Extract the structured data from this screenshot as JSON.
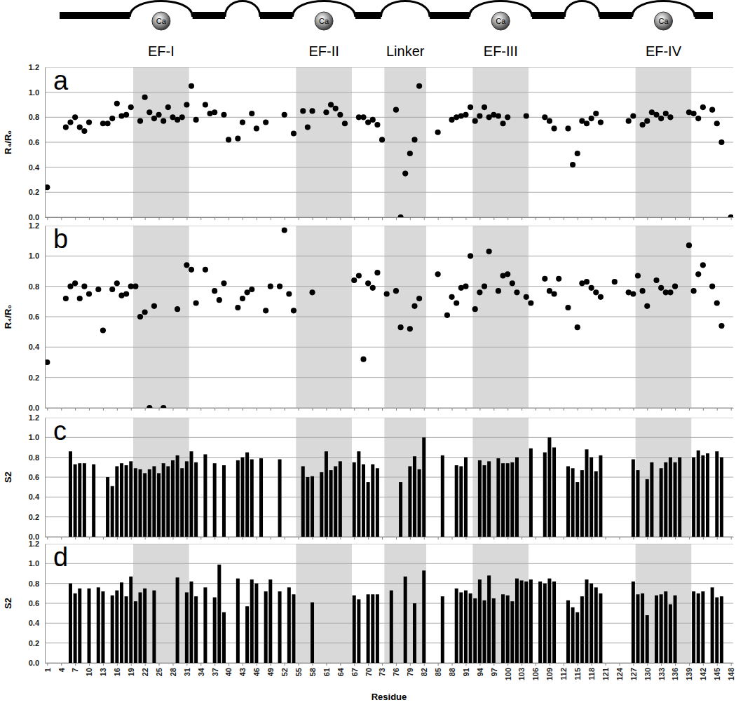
{
  "regions": [
    {
      "label": "EF-I",
      "ion": "Ca",
      "start": 19.5,
      "end": 31.5
    },
    {
      "label": "EF-II",
      "ion": "Ca",
      "start": 54.5,
      "end": 66.5
    },
    {
      "label": "Linker",
      "start": 73.5,
      "end": 82.5
    },
    {
      "label": "EF-III",
      "ion": "Ca",
      "start": 92.5,
      "end": 104.5
    },
    {
      "label": "EF-IV",
      "ion": "Ca",
      "start": 127.5,
      "end": 139.5
    }
  ],
  "chart_data": [
    {
      "type": "scatter",
      "title": "a",
      "y_label": "R₄/R₀",
      "color": "#000000",
      "marker": "circle",
      "grid": true,
      "tick_labels": "y",
      "xlim": [
        0.5,
        148.5
      ],
      "ylim": [
        0,
        1.2
      ],
      "xticks": [
        1,
        4,
        7,
        10,
        13,
        16,
        19,
        22,
        25,
        28,
        31,
        34,
        37,
        40,
        43,
        46,
        49,
        52,
        55,
        58,
        61,
        64,
        67,
        70,
        73,
        76,
        79,
        82,
        85,
        88,
        91,
        94,
        97,
        100,
        103,
        106,
        109,
        112,
        115,
        118,
        121,
        124,
        127,
        130,
        133,
        136,
        139,
        142,
        145,
        148
      ],
      "yticks": [
        {
          "value": 0,
          "label": "0.0"
        },
        0.2,
        0.4,
        0.6,
        0.8,
        {
          "value": 1,
          "label": "1.0"
        },
        1.2
      ],
      "x": [
        1,
        5,
        6,
        7,
        8,
        9,
        10,
        13,
        14,
        15,
        16,
        17,
        18,
        19,
        21,
        22,
        23,
        24,
        25,
        26,
        27,
        28,
        29,
        30,
        31,
        32,
        33,
        35,
        36,
        37,
        39,
        40,
        42,
        43,
        45,
        46,
        48,
        52,
        54,
        56,
        57,
        58,
        61,
        62,
        63,
        64,
        65,
        68,
        69,
        70,
        71,
        72,
        73,
        76,
        77,
        78,
        79,
        80,
        81,
        85,
        88,
        89,
        90,
        91,
        92,
        93,
        94,
        95,
        96,
        97,
        98,
        99,
        100,
        104,
        108,
        109,
        110,
        113,
        114,
        115,
        116,
        117,
        118,
        119,
        120,
        126,
        127,
        129,
        130,
        131,
        132,
        133,
        134,
        135,
        139,
        140,
        141,
        142,
        144,
        145,
        146,
        148
      ],
      "values": [
        0.24,
        0.72,
        0.76,
        0.8,
        0.72,
        0.69,
        0.76,
        0.75,
        0.75,
        0.79,
        0.91,
        0.81,
        0.82,
        0.88,
        0.77,
        0.96,
        0.84,
        0.79,
        0.82,
        0.77,
        0.88,
        0.8,
        0.78,
        0.8,
        0.9,
        1.05,
        0.78,
        0.9,
        0.83,
        0.84,
        0.82,
        0.62,
        0.63,
        0.76,
        0.83,
        0.71,
        0.76,
        0.82,
        0.67,
        0.85,
        0.72,
        0.85,
        0.84,
        0.9,
        0.87,
        0.82,
        0.75,
        0.8,
        0.8,
        0.76,
        0.78,
        0.74,
        0.62,
        0.86,
        0.0,
        0.35,
        0.51,
        0.62,
        1.05,
        0.68,
        0.78,
        0.8,
        0.81,
        0.82,
        0.88,
        0.77,
        0.81,
        0.88,
        0.8,
        0.82,
        0.81,
        0.75,
        0.8,
        0.81,
        0.8,
        0.77,
        0.71,
        0.71,
        0.42,
        0.51,
        0.77,
        0.75,
        0.79,
        0.83,
        0.76,
        0.77,
        0.81,
        0.74,
        0.77,
        0.84,
        0.82,
        0.79,
        0.83,
        0.8,
        0.84,
        0.83,
        0.79,
        0.88,
        0.86,
        0.75,
        0.6,
        0.0
      ]
    },
    {
      "type": "scatter",
      "title": "b",
      "y_label": "R₄/R₀",
      "color": "#000000",
      "marker": "circle",
      "grid": true,
      "tick_labels": "y",
      "xlim": [
        0.5,
        148.5
      ],
      "ylim": [
        0,
        1.2
      ],
      "xticks": [
        1,
        4,
        7,
        10,
        13,
        16,
        19,
        22,
        25,
        28,
        31,
        34,
        37,
        40,
        43,
        46,
        49,
        52,
        55,
        58,
        61,
        64,
        67,
        70,
        73,
        76,
        79,
        82,
        85,
        88,
        91,
        94,
        97,
        100,
        103,
        106,
        109,
        112,
        115,
        118,
        121,
        124,
        127,
        130,
        133,
        136,
        139,
        142,
        145,
        148
      ],
      "yticks": [
        {
          "value": 0,
          "label": "0.0"
        },
        0.2,
        0.4,
        0.6,
        0.8,
        {
          "value": 1,
          "label": "1.0"
        },
        1.2
      ],
      "x": [
        1,
        5,
        6,
        7,
        8,
        9,
        10,
        12,
        13,
        15,
        16,
        17,
        18,
        19,
        20,
        21,
        22,
        23,
        24,
        26,
        29,
        31,
        32,
        33,
        35,
        37,
        38,
        39,
        42,
        43,
        44,
        45,
        48,
        49,
        51,
        52,
        53,
        54,
        58,
        67,
        68,
        69,
        70,
        71,
        72,
        74,
        76,
        77,
        79,
        80,
        81,
        85,
        87,
        88,
        89,
        90,
        91,
        92,
        93,
        94,
        95,
        96,
        98,
        99,
        100,
        101,
        102,
        104,
        105,
        108,
        109,
        110,
        111,
        113,
        115,
        116,
        117,
        118,
        119,
        120,
        123,
        126,
        127,
        128,
        129,
        130,
        132,
        133,
        134,
        135,
        136,
        139,
        140,
        141,
        142,
        144,
        145,
        146
      ],
      "values": [
        0.3,
        0.72,
        0.8,
        0.82,
        0.72,
        0.8,
        0.75,
        0.78,
        0.51,
        0.78,
        0.82,
        0.74,
        0.75,
        0.8,
        0.8,
        0.6,
        0.63,
        0.0,
        0.67,
        0.0,
        0.65,
        0.94,
        0.91,
        0.69,
        0.91,
        0.77,
        0.71,
        0.82,
        0.66,
        0.72,
        0.76,
        0.78,
        0.64,
        0.8,
        0.8,
        1.17,
        0.75,
        0.64,
        0.76,
        0.84,
        0.87,
        0.32,
        0.82,
        0.79,
        0.89,
        0.75,
        0.77,
        0.53,
        0.52,
        0.67,
        0.72,
        0.88,
        0.61,
        0.73,
        0.69,
        0.79,
        0.8,
        1.0,
        0.65,
        0.76,
        0.8,
        1.03,
        0.77,
        0.87,
        0.88,
        0.82,
        0.76,
        0.73,
        0.69,
        0.85,
        0.77,
        0.75,
        0.85,
        0.66,
        0.53,
        0.82,
        0.83,
        0.79,
        0.76,
        0.73,
        0.83,
        0.76,
        0.75,
        0.87,
        0.77,
        0.67,
        0.84,
        0.79,
        0.76,
        0.76,
        0.8,
        1.07,
        0.77,
        0.88,
        0.94,
        0.8,
        0.69,
        0.54
      ]
    },
    {
      "type": "bar",
      "title": "c",
      "y_label": "S2",
      "color": "#000000",
      "grid": true,
      "tick_labels": "y",
      "xlim": [
        0.5,
        148.5
      ],
      "ylim": [
        0,
        1.2
      ],
      "xticks": [
        1,
        4,
        7,
        10,
        13,
        16,
        19,
        22,
        25,
        28,
        31,
        34,
        37,
        40,
        43,
        46,
        49,
        52,
        55,
        58,
        61,
        64,
        67,
        70,
        73,
        76,
        79,
        82,
        85,
        88,
        91,
        94,
        97,
        100,
        103,
        106,
        109,
        112,
        115,
        118,
        121,
        124,
        127,
        130,
        133,
        136,
        139,
        142,
        145,
        148
      ],
      "yticks": [
        {
          "value": 0,
          "label": "0.0"
        },
        0.2,
        0.4,
        0.6,
        0.8,
        {
          "value": 1,
          "label": "1.0"
        },
        1.2
      ],
      "x": [
        6,
        7,
        8,
        9,
        11,
        14,
        15,
        16,
        17,
        18,
        19,
        20,
        21,
        22,
        23,
        24,
        25,
        26,
        27,
        28,
        29,
        30,
        31,
        32,
        33,
        35,
        37,
        39,
        42,
        43,
        44,
        45,
        47,
        51,
        56,
        57,
        58,
        60,
        61,
        62,
        63,
        64,
        67,
        68,
        69,
        70,
        71,
        72,
        77,
        79,
        80,
        81,
        82,
        86,
        89,
        90,
        91,
        94,
        95,
        96,
        98,
        99,
        100,
        101,
        102,
        105,
        108,
        109,
        110,
        113,
        114,
        115,
        116,
        117,
        118,
        119,
        120,
        127,
        128,
        130,
        131,
        133,
        134,
        135,
        136,
        137,
        140,
        141,
        142,
        143,
        145,
        146
      ],
      "values": [
        0.86,
        0.73,
        0.74,
        0.74,
        0.73,
        0.6,
        0.51,
        0.71,
        0.74,
        0.72,
        0.76,
        0.69,
        0.68,
        0.64,
        0.68,
        0.71,
        0.64,
        0.74,
        0.71,
        0.77,
        0.82,
        0.69,
        0.76,
        0.86,
        0.75,
        0.83,
        0.74,
        0.72,
        0.77,
        0.8,
        0.85,
        0.78,
        0.79,
        0.78,
        0.71,
        0.6,
        0.61,
        0.65,
        0.86,
        0.67,
        0.71,
        0.76,
        0.75,
        0.86,
        0.73,
        0.55,
        0.73,
        0.69,
        0.55,
        0.71,
        0.81,
        0.68,
        1.0,
        0.82,
        0.72,
        0.71,
        0.8,
        0.77,
        0.72,
        0.76,
        0.79,
        0.74,
        0.74,
        0.75,
        0.8,
        0.89,
        0.85,
        1.0,
        0.9,
        0.71,
        0.69,
        0.55,
        0.67,
        0.88,
        0.8,
        0.66,
        0.82,
        0.78,
        0.67,
        0.58,
        0.75,
        0.69,
        0.75,
        0.8,
        0.75,
        0.8,
        0.8,
        0.87,
        0.82,
        0.84,
        0.86,
        0.8
      ]
    },
    {
      "type": "bar",
      "title": "d",
      "y_label": "S2",
      "x_label": "Residue",
      "color": "#000000",
      "grid": true,
      "xlim": [
        0.5,
        148.5
      ],
      "ylim": [
        0,
        1.2
      ],
      "xticks": [
        1,
        4,
        7,
        10,
        13,
        16,
        19,
        22,
        25,
        28,
        31,
        34,
        37,
        40,
        43,
        46,
        49,
        52,
        55,
        58,
        61,
        64,
        67,
        70,
        73,
        76,
        79,
        82,
        85,
        88,
        91,
        94,
        97,
        100,
        103,
        106,
        109,
        112,
        115,
        118,
        121,
        124,
        127,
        130,
        133,
        136,
        139,
        142,
        145,
        148
      ],
      "yticks": [
        {
          "value": 0,
          "label": "0.0"
        },
        0.2,
        0.4,
        0.6,
        0.8,
        {
          "value": 1,
          "label": "1.0"
        },
        1.2
      ],
      "x": [
        6,
        7,
        8,
        10,
        12,
        13,
        15,
        16,
        17,
        18,
        19,
        20,
        21,
        22,
        24,
        29,
        31,
        32,
        33,
        35,
        37,
        38,
        39,
        42,
        44,
        45,
        46,
        48,
        49,
        51,
        53,
        54,
        58,
        67,
        68,
        70,
        71,
        72,
        75,
        78,
        80,
        82,
        86,
        89,
        90,
        91,
        92,
        93,
        94,
        95,
        96,
        97,
        99,
        100,
        101,
        102,
        103,
        104,
        105,
        107,
        108,
        109,
        110,
        113,
        114,
        115,
        116,
        117,
        118,
        119,
        120,
        127,
        128,
        129,
        130,
        132,
        133,
        134,
        135,
        136,
        140,
        141,
        142,
        144,
        145,
        146
      ],
      "values": [
        0.8,
        0.7,
        0.75,
        0.75,
        0.76,
        0.72,
        0.68,
        0.73,
        0.81,
        0.67,
        0.87,
        0.62,
        0.71,
        0.75,
        0.73,
        0.86,
        0.71,
        0.82,
        0.67,
        0.76,
        0.66,
        0.99,
        0.51,
        0.85,
        0.57,
        0.84,
        0.8,
        0.72,
        0.84,
        0.72,
        0.76,
        0.69,
        0.61,
        0.68,
        0.64,
        0.69,
        0.69,
        0.69,
        0.73,
        0.87,
        0.6,
        0.93,
        0.67,
        0.75,
        0.71,
        0.73,
        0.7,
        0.65,
        0.84,
        0.63,
        0.88,
        0.65,
        0.69,
        0.68,
        0.62,
        0.85,
        0.83,
        0.82,
        0.84,
        0.82,
        0.8,
        0.85,
        0.82,
        0.63,
        0.56,
        0.51,
        0.67,
        0.84,
        0.8,
        0.76,
        0.7,
        0.82,
        0.69,
        0.7,
        0.48,
        0.68,
        0.69,
        0.72,
        0.59,
        0.68,
        0.72,
        0.7,
        0.72,
        0.76,
        0.66,
        0.67
      ]
    }
  ]
}
